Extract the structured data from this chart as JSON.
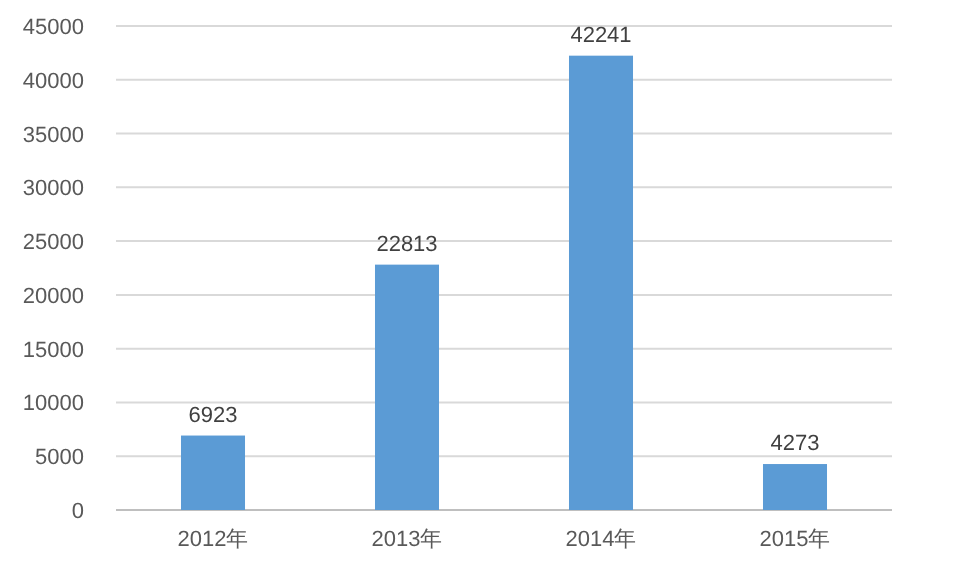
{
  "chart_data": {
    "type": "bar",
    "categories": [
      "2012年",
      "2013年",
      "2014年",
      "2015年"
    ],
    "values": [
      6923,
      22813,
      42241,
      4273
    ],
    "color": "#5b9bd5",
    "ylim": [
      0,
      45000
    ],
    "yticks": [
      0,
      5000,
      10000,
      15000,
      20000,
      25000,
      30000,
      35000,
      40000,
      45000
    ],
    "grid": "y",
    "data_labels": true
  }
}
